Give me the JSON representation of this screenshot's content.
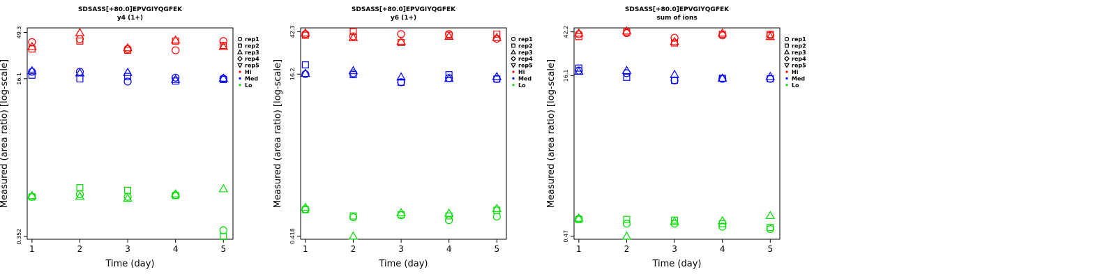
{
  "chart_data": [
    {
      "type": "scatter",
      "title": "SDSASS[+80.0]EPVGIYQGFEK",
      "subtitle": "y4 (1+)",
      "xlabel": "Time (day)",
      "ylabel": "Measured (area ratio) [log-scale]",
      "x_ticks": [
        "1",
        "2",
        "3",
        "4",
        "5"
      ],
      "y_ticks": [
        "0.352",
        "16.1",
        "49.3"
      ],
      "y_tick_values": [
        0.352,
        16.1,
        49.3
      ],
      "xlim": [
        0.9,
        5.2
      ],
      "ylim": [
        0.33,
        55
      ],
      "yscale": "log",
      "legend": {
        "position": "right",
        "reps": [
          {
            "label": "rep1",
            "symbol": "circle"
          },
          {
            "label": "rep2",
            "symbol": "square"
          },
          {
            "label": "rep3",
            "symbol": "triangle-up"
          },
          {
            "label": "rep4",
            "symbol": "diamond"
          },
          {
            "label": "rep5",
            "symbol": "triangle-down"
          }
        ],
        "levels": [
          {
            "label": "Hi",
            "color": "#ff0000"
          },
          {
            "label": "Med",
            "color": "#0000ff"
          },
          {
            "label": "Lo",
            "color": "#00dd00"
          }
        ]
      },
      "series": [
        {
          "level": "Hi",
          "rep": "rep1",
          "values": [
            [
              1,
              39
            ],
            [
              2,
              42
            ],
            [
              3,
              33
            ],
            [
              4,
              32
            ],
            [
              5,
              40
            ]
          ]
        },
        {
          "level": "Hi",
          "rep": "rep2",
          "values": [
            [
              1,
              33
            ],
            [
              2,
              40
            ],
            [
              3,
              32
            ],
            [
              4,
              40
            ],
            [
              5,
              36
            ]
          ]
        },
        {
          "level": "Hi",
          "rep": "rep3",
          "values": [
            [
              1,
              35
            ],
            [
              2,
              49
            ],
            [
              3,
              34
            ],
            [
              4,
              41
            ],
            [
              5,
              35
            ]
          ]
        },
        {
          "level": "Med",
          "rep": "rep1",
          "values": [
            [
              1,
              19
            ],
            [
              2,
              19
            ],
            [
              3,
              15
            ],
            [
              4,
              16.5
            ],
            [
              5,
              16.1
            ]
          ]
        },
        {
          "level": "Med",
          "rep": "rep2",
          "values": [
            [
              1,
              17.5
            ],
            [
              2,
              16
            ],
            [
              3,
              17
            ],
            [
              4,
              15.2
            ],
            [
              5,
              15.8
            ]
          ]
        },
        {
          "level": "Med",
          "rep": "rep3",
          "values": [
            [
              1,
              19.5
            ],
            [
              2,
              18.5
            ],
            [
              3,
              18.7
            ],
            [
              4,
              15.8
            ],
            [
              5,
              16.3
            ]
          ]
        },
        {
          "level": "Lo",
          "rep": "rep1",
          "values": [
            [
              1,
              0.92
            ],
            [
              2,
              0.98
            ],
            [
              3,
              0.92
            ],
            [
              4,
              0.96
            ],
            [
              5,
              0.41
            ]
          ]
        },
        {
          "level": "Lo",
          "rep": "rep2",
          "values": [
            [
              1,
              0.92
            ],
            [
              2,
              1.15
            ],
            [
              3,
              1.08
            ],
            [
              4,
              0.95
            ],
            [
              5,
              0.352
            ]
          ]
        },
        {
          "level": "Lo",
          "rep": "rep3",
          "values": [
            [
              1,
              0.95
            ],
            [
              2,
              0.93
            ],
            [
              3,
              0.89
            ],
            [
              4,
              0.99
            ],
            [
              5,
              1.12
            ]
          ]
        }
      ]
    },
    {
      "type": "scatter",
      "title": "SDSASS[+80.0]EPVGIYQGFEK",
      "subtitle": "y6 (1+)",
      "xlabel": "Time (day)",
      "ylabel": "Measured (area ratio) [log-scale]",
      "x_ticks": [
        "1",
        "2",
        "3",
        "4",
        "5"
      ],
      "y_ticks": [
        "0.418",
        "16.2",
        "42.3"
      ],
      "y_tick_values": [
        0.418,
        16.2,
        42.3
      ],
      "xlim": [
        0.9,
        5.2
      ],
      "ylim": [
        0.39,
        46
      ],
      "yscale": "log",
      "legend": {
        "position": "right",
        "reps": [
          {
            "label": "rep1",
            "symbol": "circle"
          },
          {
            "label": "rep2",
            "symbol": "square"
          },
          {
            "label": "rep3",
            "symbol": "triangle-up"
          },
          {
            "label": "rep4",
            "symbol": "diamond"
          },
          {
            "label": "rep5",
            "symbol": "triangle-down"
          }
        ],
        "levels": [
          {
            "label": "Hi",
            "color": "#ff0000"
          },
          {
            "label": "Med",
            "color": "#0000ff"
          },
          {
            "label": "Lo",
            "color": "#00dd00"
          }
        ]
      },
      "series": [
        {
          "level": "Hi",
          "rep": "rep1",
          "values": [
            [
              1,
              40
            ],
            [
              2,
              38
            ],
            [
              3,
              40
            ],
            [
              4,
              40
            ],
            [
              5,
              36
            ]
          ]
        },
        {
          "level": "Hi",
          "rep": "rep2",
          "values": [
            [
              1,
              39
            ],
            [
              2,
              42.3
            ],
            [
              3,
              33
            ],
            [
              4,
              39
            ],
            [
              5,
              40
            ]
          ]
        },
        {
          "level": "Hi",
          "rep": "rep3",
          "values": [
            [
              1,
              41
            ],
            [
              2,
              37
            ],
            [
              3,
              34
            ],
            [
              4,
              38
            ],
            [
              5,
              37
            ]
          ]
        },
        {
          "level": "Med",
          "rep": "rep1",
          "values": [
            [
              1,
              16.2
            ],
            [
              2,
              16.5
            ],
            [
              3,
              13.5
            ],
            [
              4,
              14.8
            ],
            [
              5,
              14.5
            ]
          ]
        },
        {
          "level": "Med",
          "rep": "rep2",
          "values": [
            [
              1,
              20
            ],
            [
              2,
              16
            ],
            [
              3,
              13.5
            ],
            [
              4,
              16
            ],
            [
              5,
              14.5
            ]
          ]
        },
        {
          "level": "Med",
          "rep": "rep3",
          "values": [
            [
              1,
              16.5
            ],
            [
              2,
              17.5
            ],
            [
              3,
              15.2
            ],
            [
              4,
              14.7
            ],
            [
              5,
              15.3
            ]
          ]
        },
        {
          "level": "Lo",
          "rep": "rep1",
          "values": [
            [
              1,
              0.77
            ],
            [
              2,
              0.64
            ],
            [
              3,
              0.67
            ],
            [
              4,
              0.6
            ],
            [
              5,
              0.65
            ]
          ]
        },
        {
          "level": "Lo",
          "rep": "rep2",
          "values": [
            [
              1,
              0.76
            ],
            [
              2,
              0.66
            ],
            [
              3,
              0.68
            ],
            [
              4,
              0.66
            ],
            [
              5,
              0.75
            ]
          ]
        },
        {
          "level": "Lo",
          "rep": "rep3",
          "values": [
            [
              1,
              0.8
            ],
            [
              2,
              0.418
            ],
            [
              3,
              0.71
            ],
            [
              4,
              0.7
            ],
            [
              5,
              0.78
            ]
          ]
        }
      ]
    },
    {
      "type": "scatter",
      "title": "SDSASS[+80.0]EPVGIYQGFEK",
      "subtitle": "sum of ions",
      "xlabel": "Time (day)",
      "ylabel": "Measured (area ratio) [log-scale]",
      "x_ticks": [
        "1",
        "2",
        "3",
        "4",
        "5"
      ],
      "y_ticks": [
        "0.47",
        "16.1",
        "42.2"
      ],
      "y_tick_values": [
        0.47,
        16.1,
        42.2
      ],
      "xlim": [
        0.9,
        5.2
      ],
      "ylim": [
        0.44,
        46
      ],
      "yscale": "log",
      "legend": {
        "position": "right",
        "reps": [
          {
            "label": "rep1",
            "symbol": "circle"
          },
          {
            "label": "rep2",
            "symbol": "square"
          },
          {
            "label": "rep3",
            "symbol": "triangle-up"
          },
          {
            "label": "rep4",
            "symbol": "diamond"
          },
          {
            "label": "rep5",
            "symbol": "triangle-down"
          }
        ],
        "levels": [
          {
            "label": "Hi",
            "color": "#ff0000"
          },
          {
            "label": "Med",
            "color": "#0000ff"
          },
          {
            "label": "Lo",
            "color": "#00dd00"
          }
        ]
      },
      "series": [
        {
          "level": "Hi",
          "rep": "rep1",
          "values": [
            [
              1,
              40
            ],
            [
              2,
              41
            ],
            [
              3,
              37
            ],
            [
              4,
              39
            ],
            [
              5,
              39
            ]
          ]
        },
        {
          "level": "Hi",
          "rep": "rep2",
          "values": [
            [
              1,
              38
            ],
            [
              2,
              42
            ],
            [
              3,
              33
            ],
            [
              4,
              40
            ],
            [
              5,
              40
            ]
          ]
        },
        {
          "level": "Hi",
          "rep": "rep3",
          "values": [
            [
              1,
              41
            ],
            [
              2,
              43
            ],
            [
              3,
              34
            ],
            [
              4,
              41
            ],
            [
              5,
              38
            ]
          ]
        },
        {
          "level": "Med",
          "rep": "rep1",
          "values": [
            [
              1,
              18
            ],
            [
              2,
              17
            ],
            [
              3,
              14.5
            ],
            [
              4,
              15
            ],
            [
              5,
              15
            ]
          ]
        },
        {
          "level": "Med",
          "rep": "rep2",
          "values": [
            [
              1,
              19
            ],
            [
              2,
              15.5
            ],
            [
              3,
              14.5
            ],
            [
              4,
              15.2
            ],
            [
              5,
              15
            ]
          ]
        },
        {
          "level": "Med",
          "rep": "rep3",
          "values": [
            [
              1,
              17.7
            ],
            [
              2,
              18
            ],
            [
              3,
              16.5
            ],
            [
              4,
              15.2
            ],
            [
              5,
              15.8
            ]
          ]
        },
        {
          "level": "Lo",
          "rep": "rep1",
          "values": [
            [
              1,
              0.69
            ],
            [
              2,
              0.62
            ],
            [
              3,
              0.62
            ],
            [
              4,
              0.58
            ],
            [
              5,
              0.55
            ]
          ]
        },
        {
          "level": "Lo",
          "rep": "rep2",
          "values": [
            [
              1,
              0.68
            ],
            [
              2,
              0.68
            ],
            [
              3,
              0.67
            ],
            [
              4,
              0.62
            ],
            [
              5,
              0.57
            ]
          ]
        },
        {
          "level": "Lo",
          "rep": "rep3",
          "values": [
            [
              1,
              0.7
            ],
            [
              2,
              0.47
            ],
            [
              3,
              0.65
            ],
            [
              4,
              0.66
            ],
            [
              5,
              0.74
            ]
          ]
        }
      ]
    }
  ]
}
